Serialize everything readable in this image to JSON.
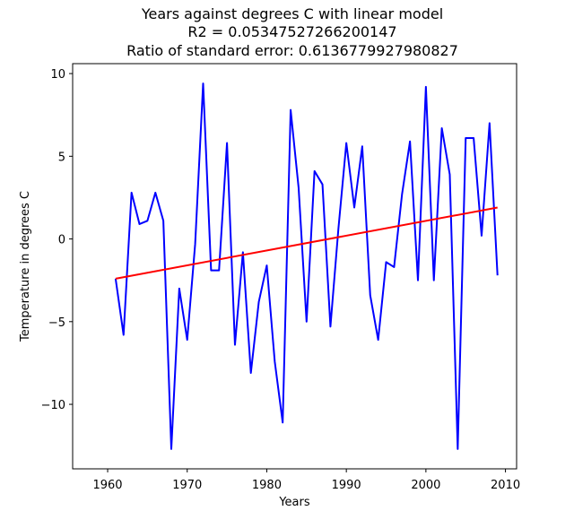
{
  "chart_data": {
    "type": "line",
    "title": [
      "Years against degrees C with linear model",
      "R2 = 0.05347527266200147",
      "Ratio of standard error: 0.6136779927980827"
    ],
    "xlabel": "Years",
    "ylabel": "Temperature in degrees C",
    "xlim": [
      1955.6,
      2011.4
    ],
    "ylim": [
      -13.9,
      10.6
    ],
    "xticks": [
      1960,
      1970,
      1980,
      1990,
      2000,
      2010
    ],
    "yticks": [
      -10,
      -5,
      0,
      5,
      10
    ],
    "ytick_labels": [
      "−10",
      "−5",
      "0",
      "5",
      "10"
    ],
    "grid": false,
    "series": [
      {
        "color": "#0000ff",
        "x": [
          1961,
          1962,
          1963,
          1964,
          1965,
          1966,
          1967,
          1968,
          1969,
          1970,
          1971,
          1972,
          1973,
          1974,
          1975,
          1976,
          1977,
          1978,
          1979,
          1980,
          1981,
          1982,
          1983,
          1984,
          1985,
          1986,
          1987,
          1988,
          1989,
          1990,
          1991,
          1992,
          1993,
          1994,
          1995,
          1996,
          1997,
          1998,
          1999,
          2000,
          2001,
          2002,
          2003,
          2004,
          2005,
          2006,
          2007,
          2008,
          2009
        ],
        "y": [
          -2.4,
          -5.8,
          2.8,
          0.9,
          1.1,
          2.8,
          1.1,
          -12.7,
          -3.0,
          -6.1,
          -0.3,
          9.4,
          -1.9,
          -1.9,
          5.8,
          -6.4,
          -0.8,
          -8.1,
          -3.8,
          -1.6,
          -7.4,
          -11.1,
          7.8,
          3.1,
          -5.0,
          4.1,
          3.3,
          -5.3,
          0.6,
          5.8,
          1.9,
          5.6,
          -3.4,
          -6.1,
          -1.4,
          -1.7,
          2.7,
          5.9,
          -2.5,
          9.2,
          -2.5,
          6.7,
          3.9,
          -12.7,
          6.1,
          6.1,
          0.2,
          7.0,
          -2.2
        ]
      },
      {
        "color": "#ff0000",
        "x": [
          1961,
          2009
        ],
        "y": [
          -2.4,
          1.9
        ]
      }
    ]
  }
}
